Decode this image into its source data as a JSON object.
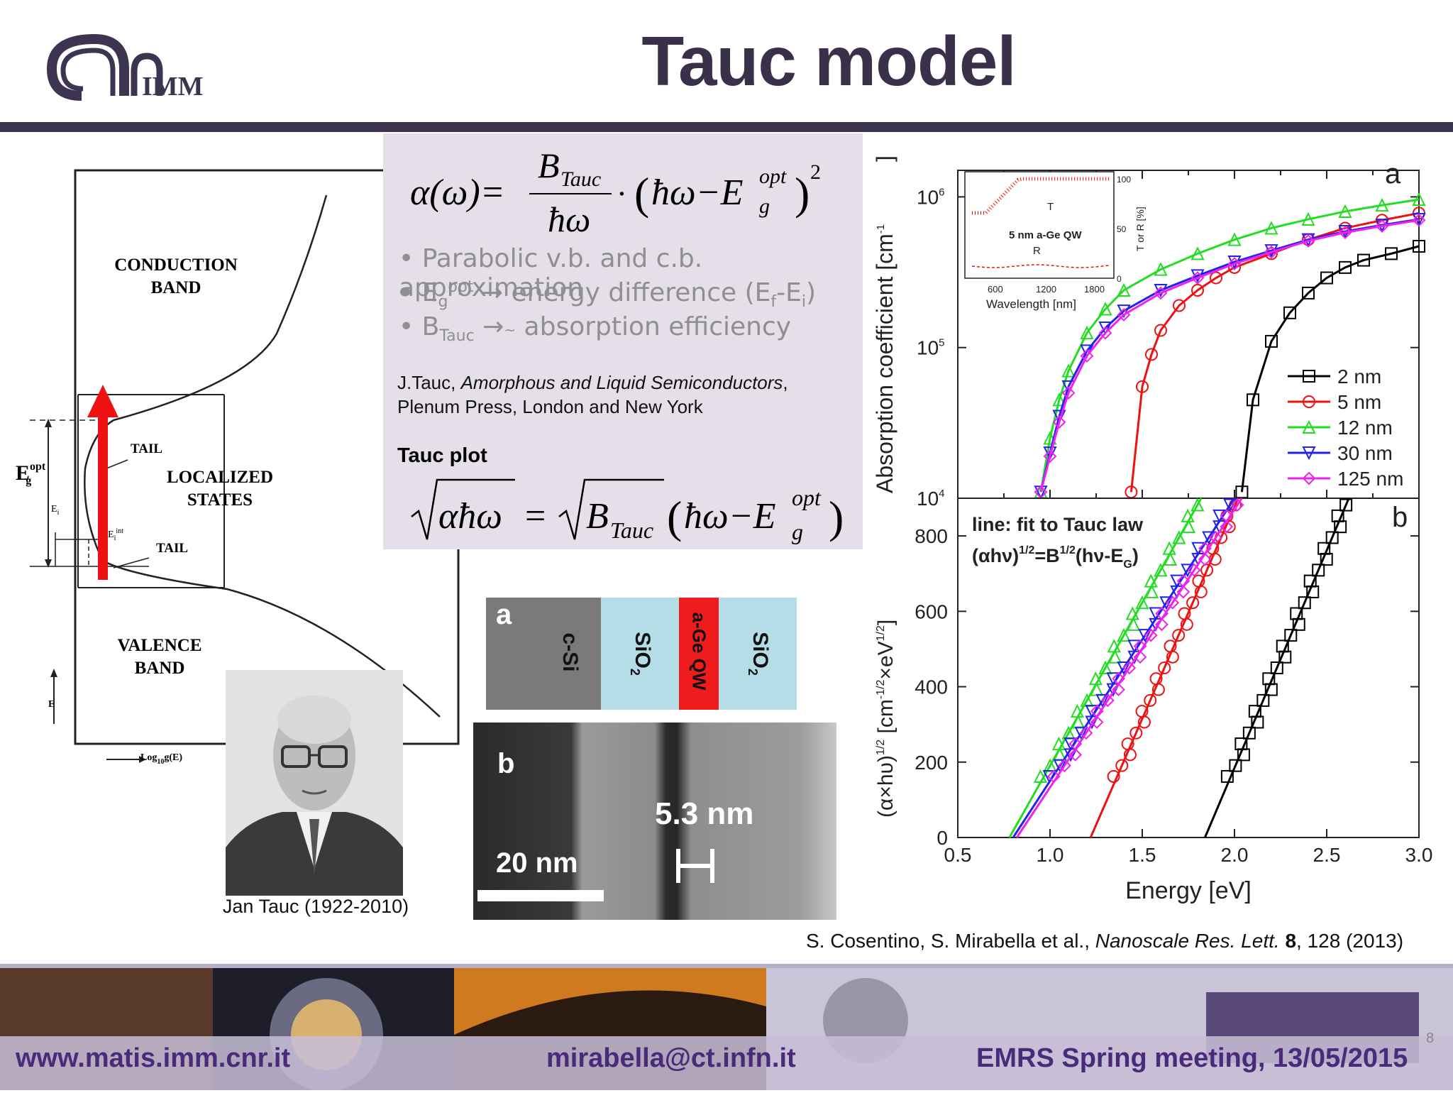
{
  "header": {
    "title": "Tauc model",
    "logo_text": "IMM"
  },
  "band_diagram": {
    "conduction_band": [
      "CONDUCTION",
      "BAND"
    ],
    "valence_band": [
      "VALENCE",
      "BAND"
    ],
    "localized_states": [
      "LOCALIZED",
      "STATES"
    ],
    "tail_top": "TAIL",
    "tail_bottom": "TAIL",
    "eg_label": "E",
    "eg_sup": "opt",
    "eg_sub": "g",
    "ei_label": "E",
    "ei_sub": "i",
    "eiint_label": "E",
    "eiint_sub": "i",
    "eiint_sup": "int",
    "e_axis": "E",
    "x_axis": "Log",
    "x_axis_sub": "10",
    "x_axis_rest": "g(E)"
  },
  "formula_box": {
    "bullets": [
      "Parabolic v.b. and c.b. approximation",
      "energy difference (E",
      "absorption efficiency"
    ],
    "reference_line1_a": "J.Tauc, ",
    "reference_line1_b": "Amorphous and Liquid Semiconductors",
    "reference_line1_c": ",",
    "reference_line2": "Plenum Press, London and New York",
    "tauc_plot_label": "Tauc plot"
  },
  "photo": {
    "caption": "Jan Tauc (1922-2010)"
  },
  "structure_diagram": {
    "panel_a": "a",
    "panel_b": "b",
    "layers": [
      "c-Si",
      "SiO",
      "a-Ge QW",
      "SiO"
    ],
    "layer_sub": "2",
    "scale_bar": "20 nm",
    "thickness": "5.3 nm",
    "colors": {
      "csi": "#7a7a7a",
      "sio2": "#b4dde8",
      "age": "#ee1c1c"
    }
  },
  "chart_data": [
    {
      "type": "line",
      "panel": "a",
      "xlabel": "",
      "ylabel": "Absorption coefficient [cm",
      "ylabel_sup": "-1",
      "ylabel_end": "]",
      "yscale": "log",
      "ylim": [
        10000,
        1500000
      ],
      "xlim": [
        0.5,
        3.0
      ],
      "yticks": [
        "10",
        "10",
        "10"
      ],
      "ytick_sups": [
        "4",
        "5",
        "6"
      ],
      "series": [
        {
          "name": "2 nm",
          "color": "#000000",
          "x": [
            2.04,
            2.1,
            2.2,
            2.3,
            2.4,
            2.5,
            2.6,
            2.7,
            2.85,
            3.0
          ],
          "y": [
            11000,
            45000,
            110000,
            170000,
            230000,
            290000,
            340000,
            380000,
            420000,
            470000
          ]
        },
        {
          "name": "5 nm",
          "color": "#ee1111",
          "x": [
            1.44,
            1.5,
            1.55,
            1.6,
            1.7,
            1.8,
            1.9,
            2.0,
            2.2,
            2.4,
            2.6,
            2.8,
            3.0
          ],
          "y": [
            11000,
            55000,
            90000,
            130000,
            190000,
            240000,
            290000,
            340000,
            420000,
            520000,
            620000,
            700000,
            780000
          ]
        },
        {
          "name": "12 nm",
          "color": "#22dd22",
          "x": [
            0.95,
            1.0,
            1.05,
            1.1,
            1.2,
            1.3,
            1.4,
            1.6,
            1.8,
            2.0,
            2.2,
            2.4,
            2.6,
            2.8,
            3.0
          ],
          "y": [
            11000,
            25000,
            45000,
            70000,
            125000,
            180000,
            240000,
            330000,
            420000,
            520000,
            620000,
            710000,
            800000,
            880000,
            960000
          ]
        },
        {
          "name": "30 nm",
          "color": "#2222ee",
          "x": [
            0.95,
            1.0,
            1.05,
            1.1,
            1.2,
            1.3,
            1.4,
            1.6,
            1.8,
            2.0,
            2.2,
            2.4,
            2.6,
            2.8,
            3.0
          ],
          "y": [
            11000,
            20000,
            35000,
            55000,
            95000,
            135000,
            175000,
            240000,
            300000,
            370000,
            440000,
            520000,
            590000,
            650000,
            710000
          ]
        },
        {
          "name": "125 nm",
          "color": "#ee22ee",
          "x": [
            0.95,
            1.0,
            1.05,
            1.1,
            1.2,
            1.3,
            1.4,
            1.6,
            1.8,
            2.0,
            2.2,
            2.4,
            2.6,
            2.8,
            3.0
          ],
          "y": [
            11000,
            19000,
            32000,
            50000,
            88000,
            125000,
            165000,
            230000,
            290000,
            360000,
            430000,
            510000,
            580000,
            640000,
            700000
          ]
        }
      ],
      "legend_position": "bottom-right",
      "inset": {
        "label": "5 nm a-Ge QW",
        "t_label": "T",
        "r_label": "R",
        "xlabel": "Wavelength [nm]",
        "ylabel": "T or R [%]",
        "xticks": [
          "600",
          "1200",
          "1800"
        ],
        "yticks": [
          "0",
          "50",
          "100"
        ]
      }
    },
    {
      "type": "line",
      "panel": "b",
      "xlabel": "Energy [eV]",
      "ylabel": "(α×hυ)",
      "ylabel_sup": "1/2",
      "ylabel_mid": " [cm",
      "ylabel_sup2": "-1/2",
      "ylabel_mid2": "×eV",
      "ylabel_sup3": "1/2",
      "ylabel_end": "]",
      "xlim": [
        0.5,
        3.0
      ],
      "ylim": [
        0,
        900
      ],
      "xticks": [
        "0.5",
        "1.0",
        "1.5",
        "2.0",
        "2.5",
        "3.0"
      ],
      "yticks": [
        "0",
        "200",
        "400",
        "600",
        "800"
      ],
      "annotation_line1": "line: fit to Tauc law",
      "annotation_line2_a": "(αhν)",
      "annotation_line2_sup1": "1/2",
      "annotation_line2_b": "=B",
      "annotation_line2_sup2": "1/2",
      "annotation_line2_c": "(hν-E",
      "annotation_line2_sub": "G",
      "annotation_line2_d": ")",
      "fits": [
        {
          "name": "2 nm",
          "color": "#000000",
          "x0": 1.84,
          "x1": 2.62,
          "y0": 0,
          "y1": 900
        },
        {
          "name": "5 nm",
          "color": "#ee1111",
          "x0": 1.22,
          "x1": 2.02,
          "y0": 0,
          "y1": 900
        },
        {
          "name": "12 nm",
          "color": "#22dd22",
          "x0": 0.78,
          "x1": 1.82,
          "y0": 0,
          "y1": 900
        },
        {
          "name": "30 nm",
          "color": "#2222ee",
          "x0": 0.8,
          "x1": 2.0,
          "y0": 0,
          "y1": 900
        },
        {
          "name": "125 nm",
          "color": "#ee22ee",
          "x0": 0.82,
          "x1": 2.04,
          "y0": 0,
          "y1": 900
        }
      ]
    }
  ],
  "citation": {
    "authors": "S. Cosentino, S. Mirabella et al., ",
    "journal": "Nanoscale Res. Lett.",
    "volume": "8",
    "rest": ", 128 (2013)"
  },
  "footer": {
    "website": "www.matis.imm.cnr.it",
    "email": "mirabella@ct.infn.it",
    "event": "EMRS Spring meeting, 13/05/2015",
    "page_number": "8"
  }
}
